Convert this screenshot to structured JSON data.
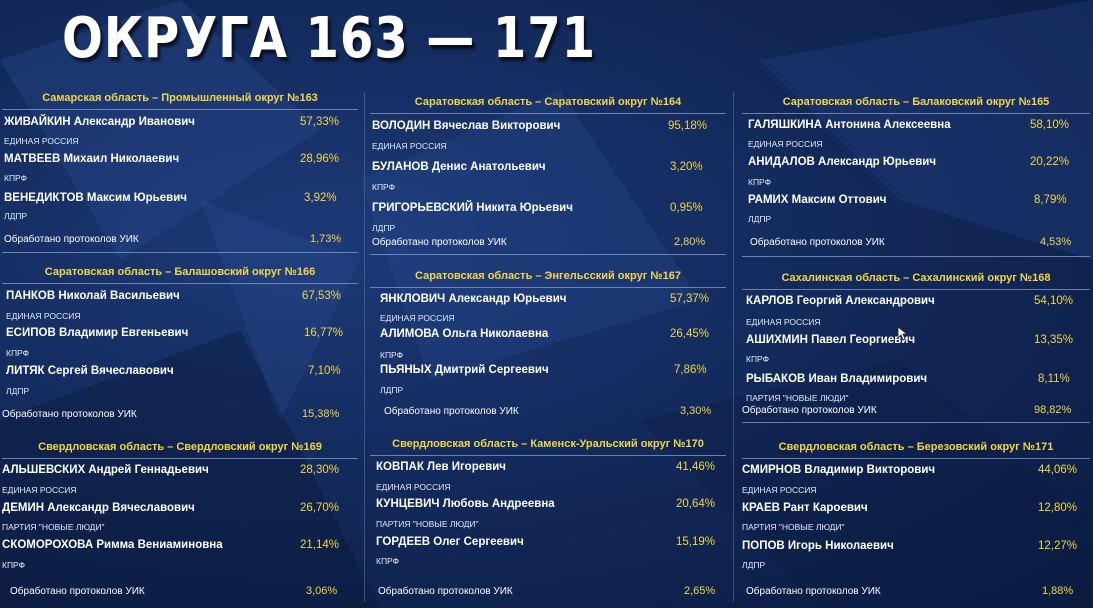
{
  "page_title": "ОКРУГА 163 — 171",
  "colors": {
    "accent": "#f2d54a",
    "background": "#132a5c",
    "text": "#ffffff"
  },
  "districts": [
    {
      "title": "Самарская область – Промышленный округ №163",
      "candidates": [
        {
          "name": "ЖИВАЙКИН Александр Иванович",
          "party": "ЕДИНАЯ РОССИЯ",
          "percent": "57,33%"
        },
        {
          "name": "МАТВЕЕВ Михаил Николаевич",
          "party": "КПРФ",
          "percent": "28,96%"
        },
        {
          "name": "ВЕНЕДИКТОВ Максим Юрьевич",
          "party": "ЛДПР",
          "percent": "3,92%"
        }
      ],
      "processed_label": "Обработано протоколов УИК",
      "processed_percent": "1,73%"
    },
    {
      "title": "Саратовская область – Саратовский округ №164",
      "candidates": [
        {
          "name": "ВОЛОДИН Вячеслав Викторович",
          "party": "ЕДИНАЯ РОССИЯ",
          "percent": "95,18%"
        },
        {
          "name": "БУЛАНОВ Денис Анатольевич",
          "party": "КПРФ",
          "percent": "3,20%"
        },
        {
          "name": "ГРИГОРЬЕВСКИЙ Никита Юрьевич",
          "party": "ЛДПР",
          "percent": "0,95%"
        }
      ],
      "processed_label": "Обработано протоколов УИК",
      "processed_percent": "2,80%"
    },
    {
      "title": "Саратовская область – Балаковский округ №165",
      "candidates": [
        {
          "name": "ГАЛЯШКИНА Антонина Алексеевна",
          "party": "ЕДИНАЯ РОССИЯ",
          "percent": "58,10%"
        },
        {
          "name": "АНИДАЛОВ Александр Юрьевич",
          "party": "КПРФ",
          "percent": "20,22%"
        },
        {
          "name": "РАМИХ Максим Оттович",
          "party": "ЛДПР",
          "percent": "8,79%"
        }
      ],
      "processed_label": "Обработано протоколов УИК",
      "processed_percent": "4,53%"
    },
    {
      "title": "Саратовская область – Балашовский округ №166",
      "candidates": [
        {
          "name": "ПАНКОВ Николай Васильевич",
          "party": "ЕДИНАЯ РОССИЯ",
          "percent": "67,53%"
        },
        {
          "name": "ЕСИПОВ Владимир Евгеньевич",
          "party": "КПРФ",
          "percent": "16,77%"
        },
        {
          "name": "ЛИТЯК Сергей Вячеславович",
          "party": "ЛДПР",
          "percent": "7,10%"
        }
      ],
      "processed_label": "Обработано протоколов УИК",
      "processed_percent": "15,38%"
    },
    {
      "title": "Саратовская область – Энгельсский округ №167",
      "candidates": [
        {
          "name": "ЯНКЛОВИЧ Александр Юрьевич",
          "party": "ЕДИНАЯ РОССИЯ",
          "percent": "57,37%"
        },
        {
          "name": "АЛИМОВА Ольга Николаевна",
          "party": "КПРФ",
          "percent": "26,45%"
        },
        {
          "name": "ПЬЯНЫХ Дмитрий Сергеевич",
          "party": "ЛДПР",
          "percent": "7,86%"
        }
      ],
      "processed_label": "Обработано протоколов УИК",
      "processed_percent": "3,30%"
    },
    {
      "title": "Сахалинская область – Сахалинский округ №168",
      "candidates": [
        {
          "name": "КАРЛОВ Георгий Александрович",
          "party": "ЕДИНАЯ РОССИЯ",
          "percent": "54,10%"
        },
        {
          "name": "АШИХМИН Павел Георгиевич",
          "party": "КПРФ",
          "percent": "13,35%"
        },
        {
          "name": "РЫБАКОВ Иван Владимирович",
          "party": "ПАРТИЯ \"НОВЫЕ ЛЮДИ\"",
          "percent": "8,11%"
        }
      ],
      "processed_label": "Обработано протоколов УИК",
      "processed_percent": "98,82%"
    },
    {
      "title": "Свердловская область – Свердловский округ №169",
      "candidates": [
        {
          "name": "АЛЬШЕВСКИХ Андрей Геннадьевич",
          "party": "ЕДИНАЯ РОССИЯ",
          "percent": "28,30%"
        },
        {
          "name": "ДЕМИН Александр Вячеславович",
          "party": "ПАРТИЯ \"НОВЫЕ ЛЮДИ\"",
          "percent": "26,70%"
        },
        {
          "name": "СКОМОРОХОВА Римма Вениаминовна",
          "party": "КПРФ",
          "percent": "21,14%"
        }
      ],
      "processed_label": "Обработано протоколов УИК",
      "processed_percent": "3,06%"
    },
    {
      "title": "Свердловская область – Каменск-Уральский округ №170",
      "candidates": [
        {
          "name": "КОВПАК Лев Игоревич",
          "party": "ЕДИНАЯ РОССИЯ",
          "percent": "41,46%"
        },
        {
          "name": "КУНЦЕВИЧ Любовь Андреевна",
          "party": "ПАРТИЯ \"НОВЫЕ ЛЮДИ\"",
          "percent": "20,64%"
        },
        {
          "name": "ГОРДЕЕВ Олег Сергеевич",
          "party": "КПРФ",
          "percent": "15,19%"
        }
      ],
      "processed_label": "Обработано протоколов УИК",
      "processed_percent": "2,65%"
    },
    {
      "title": "Свердловская область – Березовский округ №171",
      "candidates": [
        {
          "name": "СМИРНОВ Владимир Викторович",
          "party": "ЕДИНАЯ РОССИЯ",
          "percent": "44,06%"
        },
        {
          "name": "КРАЕВ Рант Кароевич",
          "party": "ПАРТИЯ \"НОВЫЕ ЛЮДИ\"",
          "percent": "12,80%"
        },
        {
          "name": "ПОПОВ Игорь Николаевич",
          "party": "ЛДПР",
          "percent": "12,27%"
        }
      ],
      "processed_label": "Обработано протоколов УИК",
      "processed_percent": "1,88%"
    }
  ]
}
